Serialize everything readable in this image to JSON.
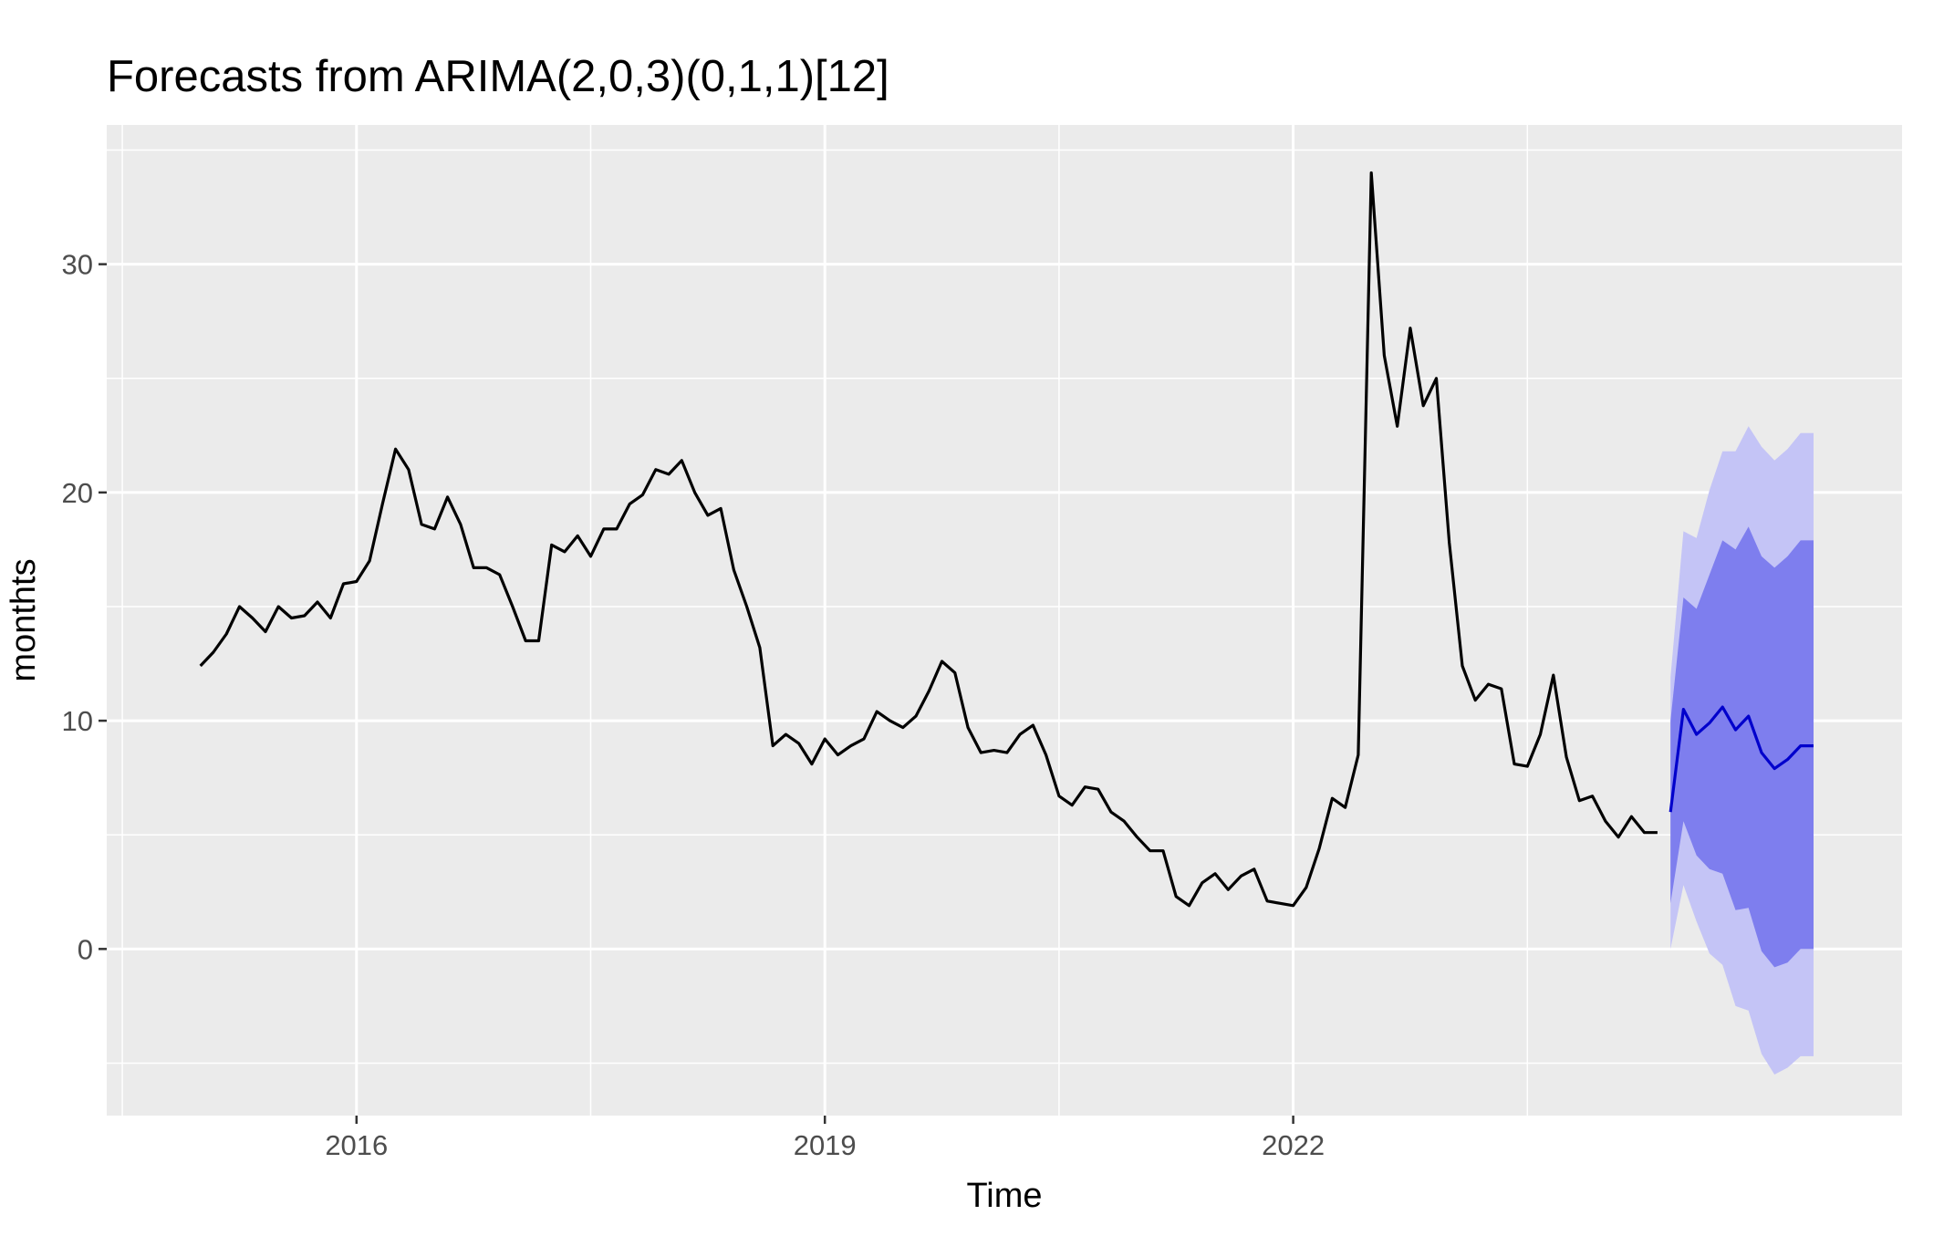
{
  "chart_data": {
    "type": "line",
    "title": "Forecasts from ARIMA(2,0,3)(0,1,1)[12]",
    "xlabel": "Time",
    "ylabel": "monthts",
    "xlim": [
      2014.4,
      2025.9
    ],
    "ylim": [
      -7.3,
      36.1
    ],
    "x_ticks": [
      2016,
      2019,
      2022
    ],
    "x_tick_labels": [
      "2016",
      "2019",
      "2022"
    ],
    "y_ticks": [
      0,
      10,
      20,
      30
    ],
    "y_tick_labels": [
      "0",
      "10",
      "20",
      "30"
    ],
    "grid": true,
    "colors": {
      "panel_background": "#EBEBEB",
      "grid_line": "#FFFFFF",
      "series_line": "#000000",
      "forecast_line": "#0000CC",
      "band_80": "#7E7EEE",
      "band_95": "#C4C4F6"
    },
    "series": [
      {
        "role": "observed",
        "start": 2015.0,
        "frequency": 12,
        "values": [
          12.4,
          13.0,
          13.8,
          15.0,
          14.5,
          13.9,
          15.0,
          14.5,
          14.6,
          15.2,
          14.5,
          16.0,
          16.1,
          17.0,
          19.5,
          21.9,
          21.0,
          18.6,
          18.4,
          19.8,
          18.6,
          16.7,
          16.7,
          16.4,
          15.0,
          13.5,
          13.5,
          17.7,
          17.4,
          18.1,
          17.2,
          18.4,
          18.4,
          19.5,
          19.9,
          21.0,
          20.8,
          21.4,
          20.0,
          19.0,
          19.3,
          16.6,
          15.0,
          13.2,
          8.9,
          9.4,
          9.0,
          8.1,
          9.2,
          8.5,
          8.9,
          9.2,
          10.4,
          10.0,
          9.7,
          10.2,
          11.3,
          12.6,
          12.1,
          9.7,
          8.6,
          8.7,
          8.6,
          9.4,
          9.8,
          8.5,
          6.7,
          6.3,
          7.1,
          7.0,
          6.0,
          5.6,
          4.9,
          4.3,
          4.3,
          2.3,
          1.9,
          2.9,
          3.3,
          2.6,
          3.2,
          3.5,
          2.1,
          2.0,
          1.9,
          2.7,
          4.4,
          6.6,
          6.2,
          8.5,
          34.0,
          26.0,
          22.9,
          27.2,
          23.8,
          25.0,
          17.8,
          12.4,
          10.9,
          11.6,
          11.4,
          8.1,
          8.0,
          9.4,
          12.0,
          8.4,
          6.5,
          6.7,
          5.6,
          4.9,
          5.8,
          5.1,
          5.1
        ]
      },
      {
        "role": "forecast",
        "start": 2024.4167,
        "frequency": 12,
        "values": [
          6.0,
          10.5,
          9.4,
          9.9,
          10.6,
          9.6,
          10.2,
          8.6,
          7.9,
          8.3,
          8.9,
          8.9
        ],
        "lo80": [
          2.0,
          5.6,
          4.1,
          3.5,
          3.3,
          1.7,
          1.8,
          -0.1,
          -0.8,
          -0.6,
          0.0,
          0.0
        ],
        "hi80": [
          10.0,
          15.4,
          14.9,
          16.4,
          17.9,
          17.5,
          18.5,
          17.2,
          16.7,
          17.2,
          17.9,
          17.9
        ],
        "lo95": [
          0.0,
          2.8,
          1.2,
          -0.2,
          -0.7,
          -2.5,
          -2.7,
          -4.6,
          -5.5,
          -5.2,
          -4.7,
          -4.7
        ],
        "hi95": [
          11.9,
          18.3,
          18.0,
          20.1,
          21.8,
          21.8,
          22.9,
          22.0,
          21.4,
          21.9,
          22.6,
          22.6
        ]
      }
    ]
  }
}
